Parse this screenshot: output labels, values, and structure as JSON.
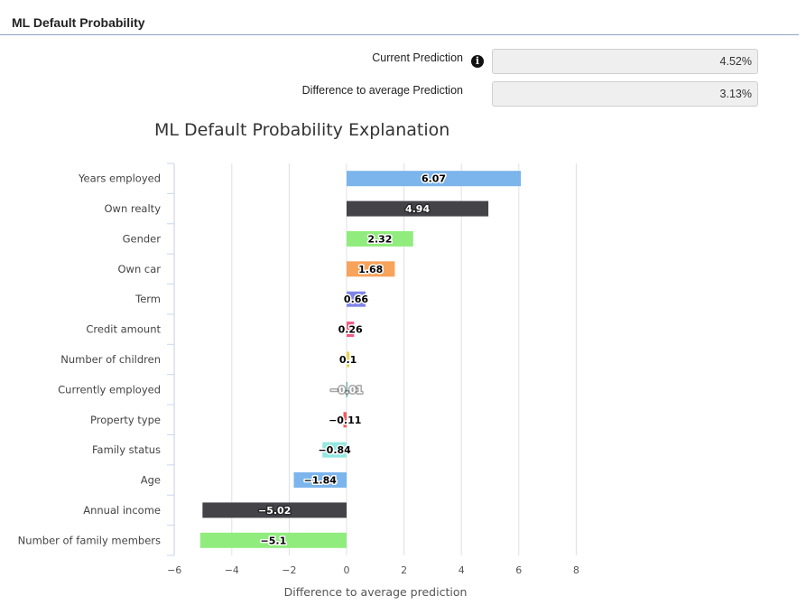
{
  "panel": {
    "title": "ML Default Probability"
  },
  "fields": {
    "current_prediction": {
      "label": "Current Prediction",
      "value": "4.52%"
    },
    "difference_to_average": {
      "label": "Difference to average Prediction",
      "value": "3.13%"
    }
  },
  "icons": {
    "info": "info-icon"
  },
  "chart_data": {
    "type": "bar",
    "orientation": "horizontal",
    "title": "ML Default Probability Explanation",
    "xlabel": "Difference to average prediction",
    "ylabel": "",
    "xlim": [
      -6,
      8
    ],
    "xticks": [
      -6,
      -4,
      -2,
      0,
      2,
      4,
      6,
      8
    ],
    "grid": true,
    "categories": [
      "Years employed",
      "Own realty",
      "Gender",
      "Own car",
      "Term",
      "Credit amount",
      "Number of children",
      "Currently employed",
      "Property type",
      "Family status",
      "Age",
      "Annual income",
      "Number of family members"
    ],
    "values": [
      6.07,
      4.94,
      2.32,
      1.68,
      0.66,
      0.26,
      0.1,
      -0.01,
      -0.11,
      -0.84,
      -1.84,
      -5.02,
      -5.1
    ],
    "labels": [
      "6.07",
      "4.94",
      "2.32",
      "1.68",
      "0.66",
      "0.26",
      "0.1",
      "-0.01",
      "-0.11",
      "-0.84",
      "-1.84",
      "-5.02",
      "-5.1"
    ],
    "colors": [
      "#7cb5ec",
      "#434348",
      "#90ed7d",
      "#f7a35c",
      "#8085e9",
      "#f15c80",
      "#e4d354",
      "#2b908f",
      "#f45b5b",
      "#91e8e1",
      "#7cb5ec",
      "#434348",
      "#90ed7d"
    ],
    "label_colors": [
      "#000000",
      "#ffffff",
      "#000000",
      "#000000",
      "#000000",
      "#000000",
      "#000000",
      "#ffffff",
      "#000000",
      "#000000",
      "#000000",
      "#ffffff",
      "#000000"
    ]
  }
}
